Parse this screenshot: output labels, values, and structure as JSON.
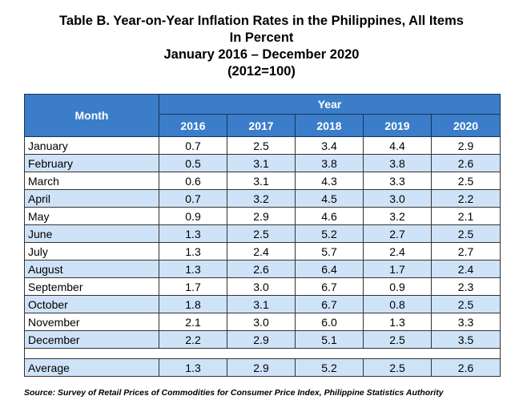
{
  "title": {
    "line1": "Table B. Year-on-Year Inflation Rates in the Philippines, All Items",
    "line2": "In Percent",
    "line3": "January 2016 – December 2020",
    "line4": "(2012=100)"
  },
  "table": {
    "month_header": "Month",
    "year_header": "Year",
    "years": [
      "2016",
      "2017",
      "2018",
      "2019",
      "2020"
    ],
    "rows": [
      {
        "month": "January",
        "values": [
          "0.7",
          "2.5",
          "3.4",
          "4.4",
          "2.9"
        ]
      },
      {
        "month": "February",
        "values": [
          "0.5",
          "3.1",
          "3.8",
          "3.8",
          "2.6"
        ]
      },
      {
        "month": "March",
        "values": [
          "0.6",
          "3.1",
          "4.3",
          "3.3",
          "2.5"
        ]
      },
      {
        "month": "April",
        "values": [
          "0.7",
          "3.2",
          "4.5",
          "3.0",
          "2.2"
        ]
      },
      {
        "month": "May",
        "values": [
          "0.9",
          "2.9",
          "4.6",
          "3.2",
          "2.1"
        ]
      },
      {
        "month": "June",
        "values": [
          "1.3",
          "2.5",
          "5.2",
          "2.7",
          "2.5"
        ]
      },
      {
        "month": "July",
        "values": [
          "1.3",
          "2.4",
          "5.7",
          "2.4",
          "2.7"
        ]
      },
      {
        "month": "August",
        "values": [
          "1.3",
          "2.6",
          "6.4",
          "1.7",
          "2.4"
        ]
      },
      {
        "month": "September",
        "values": [
          "1.7",
          "3.0",
          "6.7",
          "0.9",
          "2.3"
        ]
      },
      {
        "month": "October",
        "values": [
          "1.8",
          "3.1",
          "6.7",
          "0.8",
          "2.5"
        ]
      },
      {
        "month": "November",
        "values": [
          "2.1",
          "3.0",
          "6.0",
          "1.3",
          "3.3"
        ]
      },
      {
        "month": "December",
        "values": [
          "2.2",
          "2.9",
          "5.1",
          "2.5",
          "3.5"
        ]
      }
    ],
    "average": {
      "month": "Average",
      "values": [
        "1.3",
        "2.9",
        "5.2",
        "2.5",
        "2.6"
      ]
    }
  },
  "footnote": "Source: Survey of Retail Prices of Commodities for Consumer Price Index, Philippine Statistics Authority",
  "colors": {
    "header_bg": "#3B7DC9",
    "alt_row_bg": "#CFE3F8"
  }
}
